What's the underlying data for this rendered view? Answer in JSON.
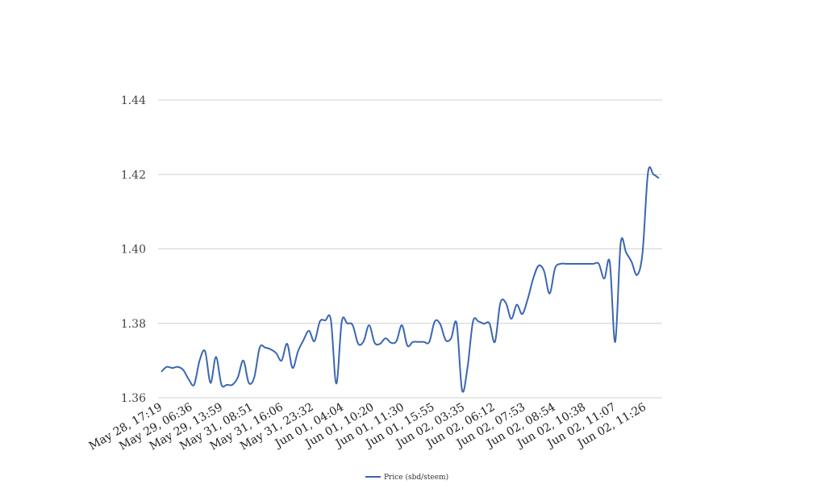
{
  "chart_data": {
    "type": "line",
    "title": "",
    "xlabel": "",
    "ylabel": "",
    "ylim": [
      1.36,
      1.44
    ],
    "yticks": [
      "1.36",
      "1.38",
      "1.40",
      "1.42",
      "1.44"
    ],
    "grid": true,
    "legend_position": "bottom",
    "line_color": "#3a66b3",
    "grid_color": "#d0d0d0",
    "x_tick_labels": [
      "May 28, 17:19",
      "May 29, 06:36",
      "May 29, 13:59",
      "May 31, 08:51",
      "May 31, 16:06",
      "May 31, 23:32",
      "Jun 01, 04:04",
      "Jun 01, 10:20",
      "Jun 01, 11:30",
      "Jun 01, 15:55",
      "Jun 02, 03:35",
      "Jun 02, 06:12",
      "Jun 02, 07:53",
      "Jun 02, 08:54",
      "Jun 02, 10:38",
      "Jun 02, 11:07",
      "Jun 02, 11:26"
    ],
    "series": [
      {
        "name": "Price (sbd/steem)",
        "values": [
          1.367,
          1.3683,
          1.368,
          1.3683,
          1.3675,
          1.365,
          1.3635,
          1.37,
          1.3725,
          1.364,
          1.371,
          1.3635,
          1.3635,
          1.3635,
          1.3655,
          1.37,
          1.364,
          1.3655,
          1.3735,
          1.3735,
          1.373,
          1.372,
          1.37,
          1.3745,
          1.368,
          1.3725,
          1.3755,
          1.378,
          1.3752,
          1.3805,
          1.3808,
          1.381,
          1.3638,
          1.3805,
          1.38,
          1.3795,
          1.3745,
          1.3752,
          1.3795,
          1.3748,
          1.3745,
          1.376,
          1.3748,
          1.3752,
          1.3795,
          1.374,
          1.375,
          1.375,
          1.375,
          1.375,
          1.3805,
          1.3798,
          1.3755,
          1.376,
          1.38,
          1.362,
          1.3682,
          1.3805,
          1.3805,
          1.3799,
          1.38,
          1.375,
          1.3855,
          1.3855,
          1.3812,
          1.385,
          1.3825,
          1.3865,
          1.392,
          1.3955,
          1.394,
          1.388,
          1.3948,
          1.396,
          1.396,
          1.396,
          1.396,
          1.396,
          1.396,
          1.396,
          1.396,
          1.392,
          1.3965,
          1.375,
          1.4015,
          1.399,
          1.3965,
          1.393,
          1.399,
          1.4205,
          1.42,
          1.419
        ]
      }
    ]
  }
}
